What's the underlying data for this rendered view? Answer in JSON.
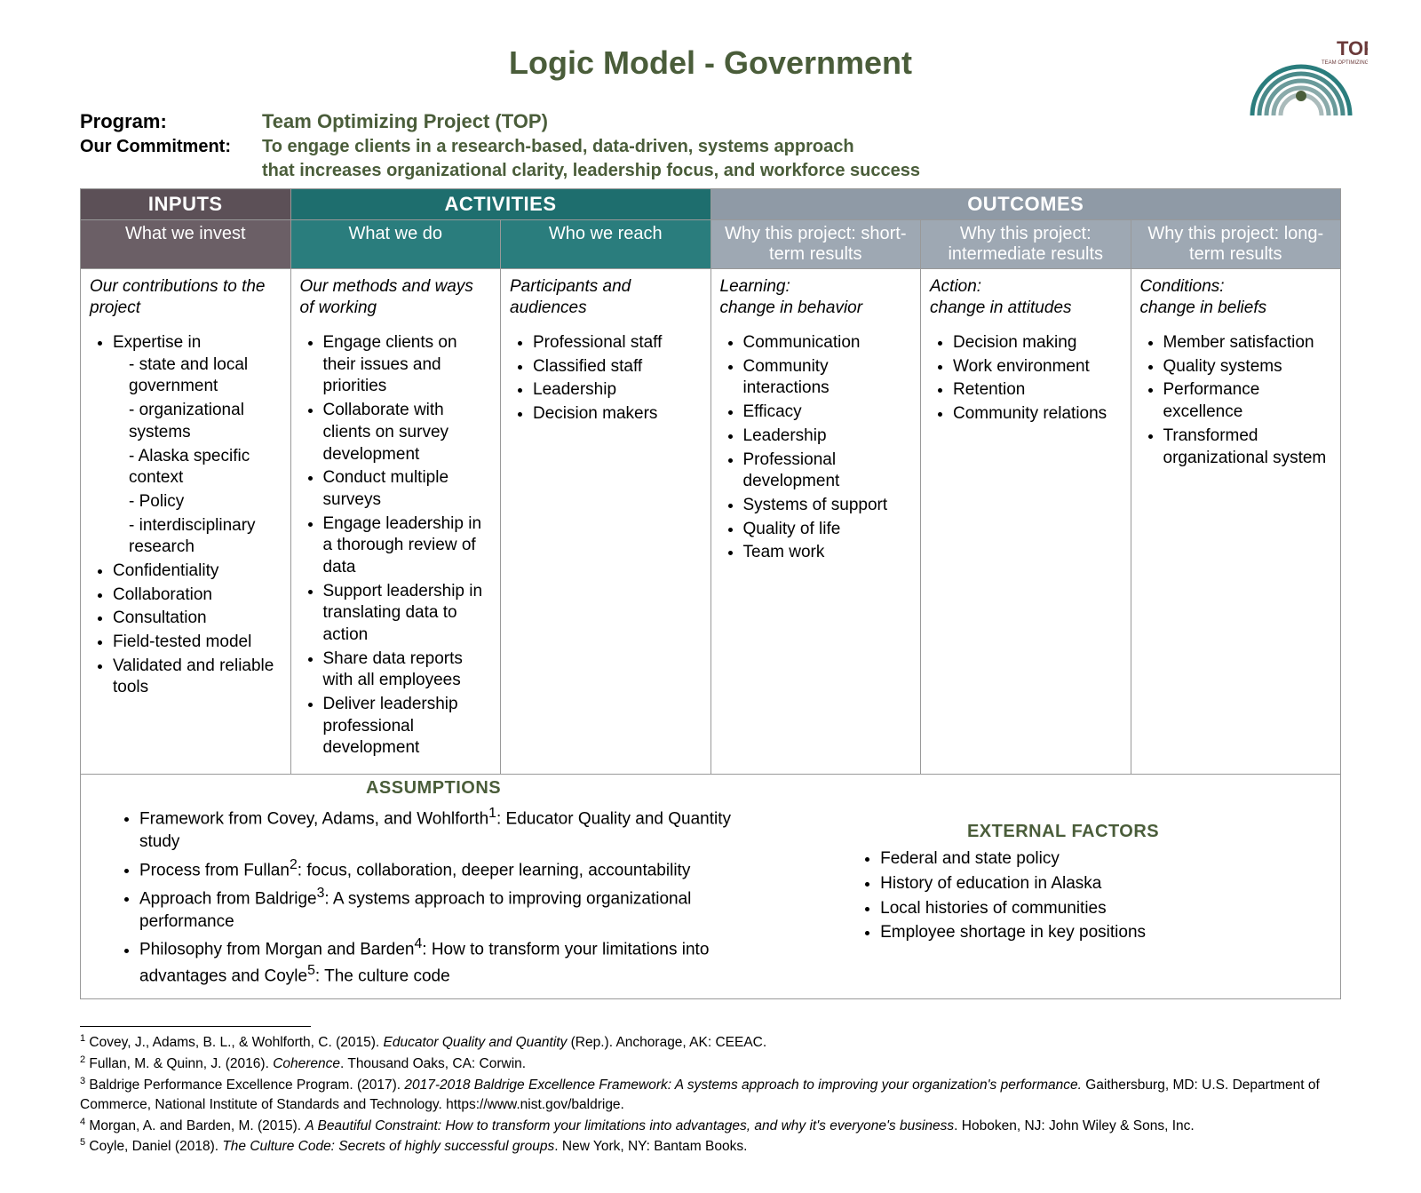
{
  "title": "Logic Model - Government",
  "colors": {
    "heading": "#4a5d3a",
    "inputs_bg": "#5c5057",
    "inputs_bg2": "#6b5f66",
    "activities_bg": "#1e6e6e",
    "activities_bg2": "#2a7d7d",
    "outcomes_bg": "#8f9aa6",
    "outcomes_bg2": "#9ea8b3",
    "border": "#999999",
    "text": "#000000",
    "white": "#ffffff"
  },
  "program": {
    "label": "Program:",
    "value": "Team Optimizing Project (TOP)"
  },
  "commitment": {
    "label": "Our Commitment:",
    "line1": "To engage clients in a research-based, data-driven, systems approach",
    "line2": "that increases organizational clarity, leadership focus, and workforce success"
  },
  "headers": {
    "inputs": "INPUTS",
    "activities": "ACTIVITIES",
    "outcomes": "OUTCOMES",
    "what_invest": "What we invest",
    "what_do": "What we do",
    "who_reach": "Who we reach",
    "short": "Why this project: short-term results",
    "intermediate": "Why this project: intermediate results",
    "long": "Why this project: long-term results"
  },
  "cols": {
    "inputs": {
      "intro": "Our contributions to the project",
      "bullets": [
        "Expertise in",
        "Confidentiality",
        "Collaboration",
        "Consultation",
        "Field-tested model",
        "Validated and reliable tools"
      ],
      "sub": [
        "state and local government",
        "organizational systems",
        "Alaska specific context",
        "Policy",
        "interdisciplinary research"
      ]
    },
    "what_do": {
      "intro": "Our methods and ways of working",
      "bullets": [
        "Engage clients on their issues and priorities",
        "Collaborate with clients on survey development",
        "Conduct multiple surveys",
        "Engage leadership in a thorough review of data",
        "Support leadership in translating data to action",
        "Share data reports with all employees",
        "Deliver leadership professional development"
      ]
    },
    "who_reach": {
      "intro": "Participants and audiences",
      "bullets": [
        "Professional staff",
        "Classified staff",
        "Leadership",
        "Decision makers"
      ]
    },
    "short": {
      "intro_l1": "Learning:",
      "intro_l2": "change in behavior",
      "bullets": [
        "Communication",
        "Community interactions",
        "Efficacy",
        "Leadership",
        "Professional development",
        "Systems of support",
        "Quality of life",
        "Team work"
      ]
    },
    "intermediate": {
      "intro_l1": "Action:",
      "intro_l2": "change in attitudes",
      "bullets": [
        "Decision making",
        "Work environment",
        "Retention",
        "Community relations"
      ]
    },
    "long": {
      "intro_l1": "Conditions:",
      "intro_l2": "change in beliefs",
      "bullets": [
        "Member satisfaction",
        "Quality systems",
        "Performance excellence",
        "Transformed organizational system"
      ]
    }
  },
  "bottom": {
    "assumptions": {
      "title": "ASSUMPTIONS",
      "items": [
        {
          "pre": "Framework from Covey, Adams, and Wohlforth",
          "sup": "1",
          "post": ": Educator Quality and Quantity study"
        },
        {
          "pre": "Process from Fullan",
          "sup": "2",
          "post": ": focus, collaboration, deeper learning, accountability"
        },
        {
          "pre": "Approach from Baldrige",
          "sup": "3",
          "post": ": A systems approach to improving organizational performance"
        },
        {
          "pre": "Philosophy from Morgan and Barden",
          "sup": "4",
          "post": ": How to transform your limitations into advantages and Coyle",
          "sup2": "5",
          "post2": ": The culture code"
        }
      ]
    },
    "external": {
      "title": "EXTERNAL FACTORS",
      "items": [
        "Federal and state policy",
        "History of education in Alaska",
        "Local histories of communities",
        "Employee shortage in key positions"
      ]
    }
  },
  "footnotes": {
    "n1": {
      "sup": "1",
      "t1": " Covey, J., Adams, B. L., & Wohlforth, C. (2015). ",
      "it": "Educator Quality and Quantity",
      "t2": " (Rep.). Anchorage, AK: CEEAC."
    },
    "n2": {
      "sup": "2",
      "t1": " Fullan, M. & Quinn, J. (2016). ",
      "it": "Coherence",
      "t2": ". Thousand Oaks, CA: Corwin."
    },
    "n3": {
      "sup": "3",
      "t1": " Baldrige Performance Excellence Program. (2017). ",
      "it": "2017-2018 Baldrige Excellence Framework: A systems approach to improving your organization's performance.",
      "t2": " Gaithersburg, MD: U.S. Department of Commerce, National Institute of Standards and Technology. https://www.nist.gov/baldrige."
    },
    "n4": {
      "sup": "4",
      "t1": " Morgan, A. and Barden, M. (2015). ",
      "it": "A Beautiful Constraint: How to transform your limitations into advantages, and why it's everyone's business",
      "t2": ". Hoboken, NJ: John Wiley & Sons, Inc."
    },
    "n5": {
      "sup": "5",
      "t1": " Coyle, Daniel (2018). ",
      "it": "The Culture Code: Secrets of highly successful groups",
      "t2": ". New York, NY: Bantam Books."
    }
  }
}
